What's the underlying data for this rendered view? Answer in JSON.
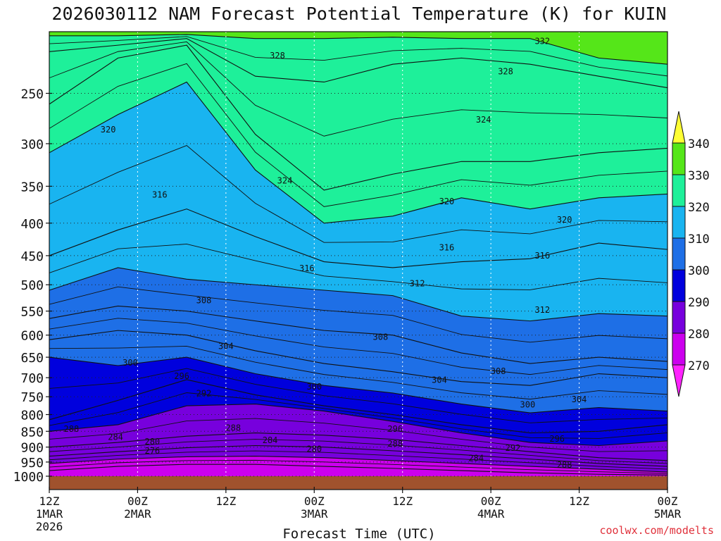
{
  "chart_data": {
    "type": "contour",
    "title": "2026030112 NAM Forecast Potential Temperature (K) for KUIN",
    "xlabel": "Forecast Time (UTC)",
    "ylabel": "",
    "credit": "coolwx.com/modelts",
    "x_ticks": [
      {
        "label": "12Z",
        "sub1": "1MAR",
        "sub2": "2026",
        "hour": 0
      },
      {
        "label": "00Z",
        "sub1": "2MAR",
        "sub2": "",
        "hour": 12
      },
      {
        "label": "12Z",
        "sub1": "",
        "sub2": "",
        "hour": 24
      },
      {
        "label": "00Z",
        "sub1": "3MAR",
        "sub2": "",
        "hour": 36
      },
      {
        "label": "12Z",
        "sub1": "",
        "sub2": "",
        "hour": 48
      },
      {
        "label": "00Z",
        "sub1": "4MAR",
        "sub2": "",
        "hour": 60
      },
      {
        "label": "12Z",
        "sub1": "",
        "sub2": "",
        "hour": 72
      },
      {
        "label": "00Z",
        "sub1": "5MAR",
        "sub2": "",
        "hour": 84
      }
    ],
    "x_range_hours": [
      0,
      84
    ],
    "y_ticks": [
      250,
      300,
      350,
      400,
      450,
      500,
      550,
      600,
      650,
      700,
      750,
      800,
      850,
      900,
      950,
      1000
    ],
    "y_range_hpa": [
      200,
      1000
    ],
    "colorbar": {
      "levels": [
        270,
        280,
        290,
        300,
        310,
        320,
        330,
        340
      ],
      "colors": [
        "#ff22ff",
        "#cc00ee",
        "#7700dd",
        "#0000dd",
        "#1e6fe6",
        "#19b4f0",
        "#1ef09a",
        "#55e619",
        "#ffff33"
      ]
    },
    "ground_color": "#a0522d",
    "isentropes": [
      {
        "theta": 276,
        "p": [
          980,
          965,
          958,
          958,
          965,
          972,
          980,
          988,
          993,
          996
        ]
      },
      {
        "theta": 280,
        "p": [
          955,
          940,
          932,
          930,
          935,
          945,
          955,
          965,
          975,
          985
        ]
      },
      {
        "theta": 284,
        "p": [
          930,
          915,
          902,
          895,
          900,
          912,
          925,
          940,
          955,
          965
        ]
      },
      {
        "theta": 288,
        "p": [
          900,
          885,
          865,
          855,
          862,
          875,
          895,
          915,
          935,
          945
        ]
      },
      {
        "theta": 292,
        "p": [
          850,
          830,
          775,
          770,
          790,
          820,
          855,
          885,
          895,
          880
        ]
      },
      {
        "theta": 296,
        "p": [
          815,
          760,
          705,
          745,
          775,
          800,
          830,
          855,
          850,
          830
        ]
      },
      {
        "theta": 300,
        "p": [
          650,
          670,
          650,
          690,
          720,
          740,
          770,
          795,
          780,
          790
        ]
      },
      {
        "theta": 304,
        "p": [
          610,
          590,
          600,
          635,
          665,
          685,
          710,
          720,
          690,
          700
        ]
      },
      {
        "theta": 308,
        "p": [
          565,
          540,
          550,
          570,
          590,
          600,
          640,
          665,
          650,
          660
        ]
      },
      {
        "theta": 312,
        "p": [
          510,
          470,
          490,
          500,
          510,
          520,
          560,
          570,
          555,
          560
        ]
      },
      {
        "theta": 316,
        "p": [
          450,
          410,
          380,
          420,
          460,
          470,
          460,
          455,
          430,
          440
        ]
      },
      {
        "theta": 320,
        "p": [
          310,
          270,
          240,
          330,
          400,
          390,
          365,
          380,
          365,
          360
        ]
      },
      {
        "theta": 324,
        "p": [
          260,
          220,
          210,
          290,
          355,
          335,
          320,
          320,
          310,
          305
        ]
      },
      {
        "theta": 328,
        "p": [
          215,
          210,
          205,
          235,
          240,
          225,
          220,
          225,
          235,
          245
        ]
      },
      {
        "theta": 332,
        "p": [
          203,
          203,
          202,
          205,
          205,
          204,
          205,
          205,
          220,
          225
        ]
      }
    ],
    "contour_labels": [
      {
        "text": "328",
        "hour": 31,
        "p": 218
      },
      {
        "text": "332",
        "hour": 67,
        "p": 207
      },
      {
        "text": "328",
        "hour": 62,
        "p": 231
      },
      {
        "text": "320",
        "hour": 8,
        "p": 285
      },
      {
        "text": "324",
        "hour": 59,
        "p": 275
      },
      {
        "text": "324",
        "hour": 32,
        "p": 343
      },
      {
        "text": "316",
        "hour": 15,
        "p": 361
      },
      {
        "text": "320",
        "hour": 54,
        "p": 370
      },
      {
        "text": "320",
        "hour": 70,
        "p": 395
      },
      {
        "text": "316",
        "hour": 54,
        "p": 437
      },
      {
        "text": "316",
        "hour": 67,
        "p": 450
      },
      {
        "text": "316",
        "hour": 35,
        "p": 471
      },
      {
        "text": "312",
        "hour": 50,
        "p": 498
      },
      {
        "text": "312",
        "hour": 67,
        "p": 548
      },
      {
        "text": "308",
        "hour": 21,
        "p": 529
      },
      {
        "text": "308",
        "hour": 45,
        "p": 604
      },
      {
        "text": "304",
        "hour": 24,
        "p": 625
      },
      {
        "text": "308",
        "hour": 61,
        "p": 684
      },
      {
        "text": "300",
        "hour": 11,
        "p": 663
      },
      {
        "text": "304",
        "hour": 53,
        "p": 706
      },
      {
        "text": "296",
        "hour": 18,
        "p": 696
      },
      {
        "text": "300",
        "hour": 36,
        "p": 723
      },
      {
        "text": "300",
        "hour": 65,
        "p": 772
      },
      {
        "text": "304",
        "hour": 72,
        "p": 757
      },
      {
        "text": "292",
        "hour": 21,
        "p": 741
      },
      {
        "text": "288",
        "hour": 3,
        "p": 843
      },
      {
        "text": "288",
        "hour": 25,
        "p": 840
      },
      {
        "text": "296",
        "hour": 47,
        "p": 843
      },
      {
        "text": "284",
        "hour": 9,
        "p": 868
      },
      {
        "text": "284",
        "hour": 30,
        "p": 878
      },
      {
        "text": "288",
        "hour": 47,
        "p": 889
      },
      {
        "text": "296",
        "hour": 69,
        "p": 873
      },
      {
        "text": "280",
        "hour": 14,
        "p": 883
      },
      {
        "text": "276",
        "hour": 14,
        "p": 912
      },
      {
        "text": "280",
        "hour": 36,
        "p": 906
      },
      {
        "text": "292",
        "hour": 63,
        "p": 903
      },
      {
        "text": "284",
        "hour": 58,
        "p": 937
      },
      {
        "text": "288",
        "hour": 70,
        "p": 960
      }
    ]
  }
}
